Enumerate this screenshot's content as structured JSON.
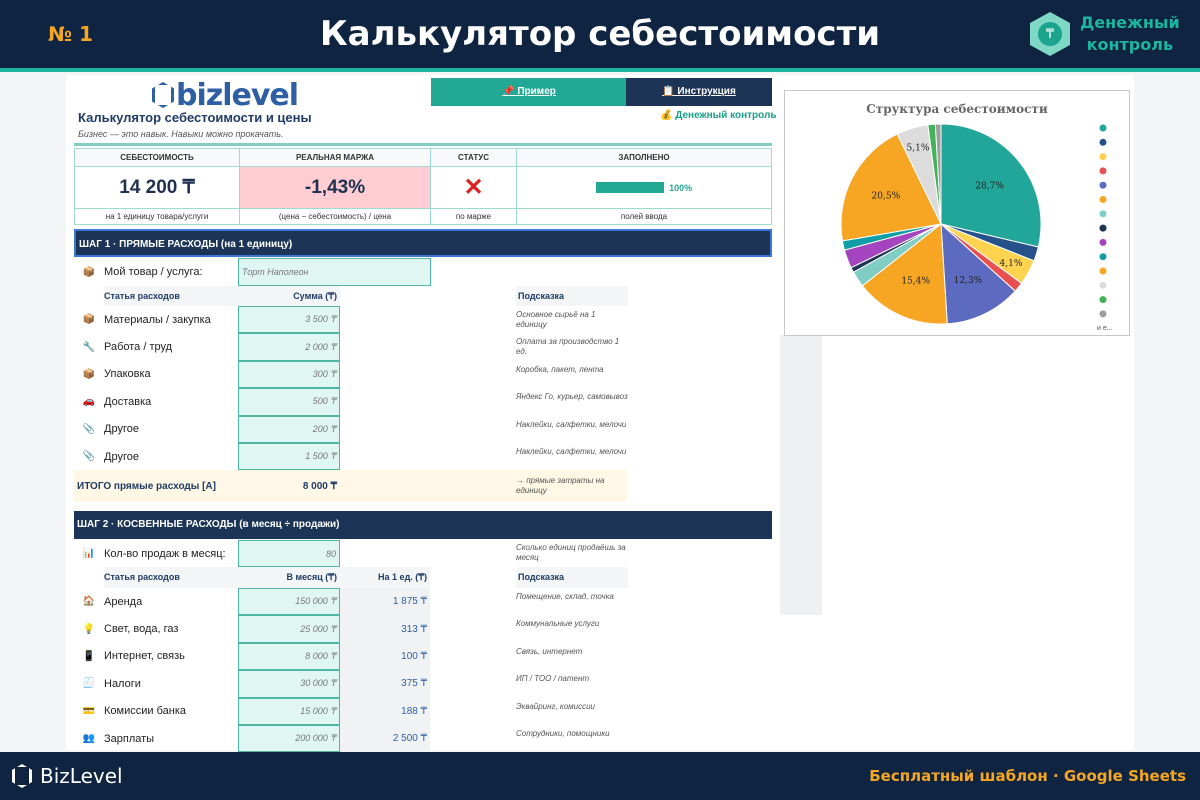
{
  "banner": {
    "number": "№ 1",
    "title": "Калькулятор себестоимости",
    "brand": "Денежный контроль",
    "brand_line1": "Денежный",
    "brand_line2": "контроль"
  },
  "sheet": {
    "logo": "bizlevel",
    "btn_example": "📌 Пример",
    "btn_instruction": "📋 Инструкция",
    "title": "Калькулятор себестоимости и цены",
    "slogan": "Бизнес — это навык. Навыки можно прокачать.",
    "link": "💰 Денежный контроль",
    "kpi": {
      "headers": [
        "СЕБЕСТОИМОСТЬ",
        "РЕАЛЬНАЯ МАРЖА",
        "СТАТУС",
        "ЗАПОЛНЕНО"
      ],
      "cost": "14 200 ₸",
      "margin": "-1,43%",
      "status": "✕",
      "filled": "100%",
      "filled_value": 100,
      "subs": [
        "на 1 единицу товара/услуги",
        "(цена − себестоимость) / цена",
        "по марже",
        "полей ввода"
      ]
    },
    "step1": {
      "title": "ШАГ 1 · ПРЯМЫЕ РАСХОДЫ (на 1 единицу)",
      "product_label": "Мой товар / услуга:",
      "product_value": "Торт Наполеон",
      "col_item": "Статья расходов",
      "col_sum": "Сумма (₸)",
      "col_hint": "Подсказка",
      "items": [
        {
          "icon": "📦",
          "name": "Материалы / закупка",
          "sum": "3 500 ₸",
          "hint": "Основное сырьё на 1 единицу"
        },
        {
          "icon": "🔧",
          "name": "Работа / труд",
          "sum": "2 000 ₸",
          "hint": "Оплата за производство 1 ед."
        },
        {
          "icon": "📦",
          "name": "Упаковка",
          "sum": "300 ₸",
          "hint": "Коробка, пакет, лента"
        },
        {
          "icon": "🚗",
          "name": "Доставка",
          "sum": "500 ₸",
          "hint": "Яндекс Го, курьер, самовывоз"
        },
        {
          "icon": "📎",
          "name": "Другое",
          "sum": "200 ₸",
          "hint": "Наклейки, салфетки, мелочи"
        },
        {
          "icon": "📎",
          "name": "Другое",
          "sum": "1 500 ₸",
          "hint": "Наклейки, салфетки, мелочи"
        }
      ],
      "total_label": "ИТОГО прямые расходы [A]",
      "total_value": "8 000 ₸",
      "total_hint": "→ прямые затраты на единицу"
    },
    "step2": {
      "title": "ШАГ 2 · КОСВЕННЫЕ РАСХОДЫ (в месяц ÷ продажи)",
      "sales_label": "Кол-во продаж в месяц:",
      "sales_value": "80",
      "sales_hint": "Сколько единиц продаёшь за месяц",
      "col_item": "Статья расходов",
      "col_month": "В месяц (₸)",
      "col_unit": "На 1 ед. (₸)",
      "col_hint": "Подсказка",
      "items": [
        {
          "icon": "🏠",
          "name": "Аренда",
          "month": "150 000 ₸",
          "unit": "1 875 ₸",
          "hint": "Помещение, склад, точка"
        },
        {
          "icon": "💡",
          "name": "Свет, вода, газ",
          "month": "25 000 ₸",
          "unit": "313 ₸",
          "hint": "Коммунальные услуги"
        },
        {
          "icon": "📱",
          "name": "Интернет, связь",
          "month": "8 000 ₸",
          "unit": "100 ₸",
          "hint": "Связь, интернет"
        },
        {
          "icon": "🧾",
          "name": "Налоги",
          "month": "30 000 ₸",
          "unit": "375 ₸",
          "hint": "ИП / ТОО / патент"
        },
        {
          "icon": "💳",
          "name": "Комиссии банка",
          "month": "15 000 ₸",
          "unit": "188 ₸",
          "hint": "Эквайринг, комиссии"
        },
        {
          "icon": "👥",
          "name": "Зарплаты",
          "month": "200 000 ₸",
          "unit": "2 500 ₸",
          "hint": "Сотрудники, помощники"
        }
      ]
    }
  },
  "footer": {
    "brand": "BizLevel",
    "right": "Бесплатный шаблон · Google Sheets"
  },
  "colors": {
    "navy": "#0f2440",
    "teal": "#1bb5a0",
    "accent": "#f5a623",
    "margin_bg": "#ffcdd2",
    "status_red": "#e02020"
  },
  "chart_data": {
    "type": "pie",
    "title": "Структура себестоимости",
    "legend_more": "и е...",
    "legend": "right",
    "values": [
      28.7,
      2.3,
      4.1,
      1.6,
      12.3,
      15.4,
      2.6,
      0.8,
      3.0,
      1.5,
      20.5,
      5.1,
      1.2,
      0.9
    ],
    "labels": [
      "28,7%",
      "",
      "4,1%",
      "",
      "12,3%",
      "15,4%",
      "",
      "",
      "",
      "",
      "20,5%",
      "5,1%",
      "",
      ""
    ],
    "colors": [
      "#22a699",
      "#27518a",
      "#fdd34f",
      "#ea4f4f",
      "#5c6bc0",
      "#f6a623",
      "#7fcdc3",
      "#1c3354",
      "#a544bf",
      "#0f9ea6",
      "#f6a623",
      "#dcdcdc",
      "#44b25a",
      "#9e9e9e"
    ]
  }
}
